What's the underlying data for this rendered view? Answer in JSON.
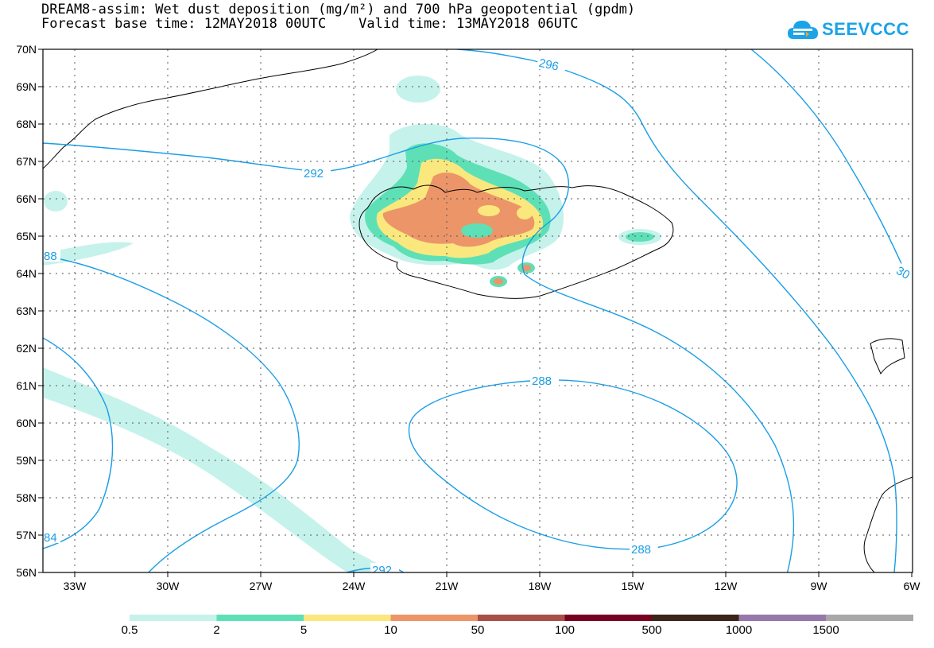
{
  "title": {
    "line1": "DREAM8-assim: Wet dust deposition (mg/m²) and 700 hPa geopotential (gpdm)",
    "line2": "Forecast base time: 12MAY2018 00UTC    Valid time: 13MAY2018 06UTC"
  },
  "logo": {
    "text": "SEEVCCC",
    "icon": "cloud-icon",
    "color": "#1aa3e8"
  },
  "map": {
    "lat_labels": [
      "70N",
      "69N",
      "68N",
      "67N",
      "66N",
      "65N",
      "64N",
      "63N",
      "62N",
      "61N",
      "60N",
      "59N",
      "58N",
      "57N",
      "56N"
    ],
    "lon_labels": [
      "33W",
      "30W",
      "27W",
      "24W",
      "21W",
      "18W",
      "15W",
      "12W",
      "9W",
      "6W"
    ],
    "contour_labels": [
      "296",
      "292",
      "288",
      "288",
      "292",
      "88",
      "30",
      "84"
    ],
    "contour_color": "#1a9ee6"
  },
  "colorbar": {
    "labels": [
      "0.5",
      "2",
      "5",
      "10",
      "50",
      "100",
      "500",
      "1000",
      "1500"
    ],
    "colors": [
      "#c6f2ec",
      "#5ee0b6",
      "#fae87e",
      "#ec9568",
      "#a85048",
      "#780020",
      "#3c2418",
      "#9678aa",
      "#a8a8a8"
    ]
  }
}
